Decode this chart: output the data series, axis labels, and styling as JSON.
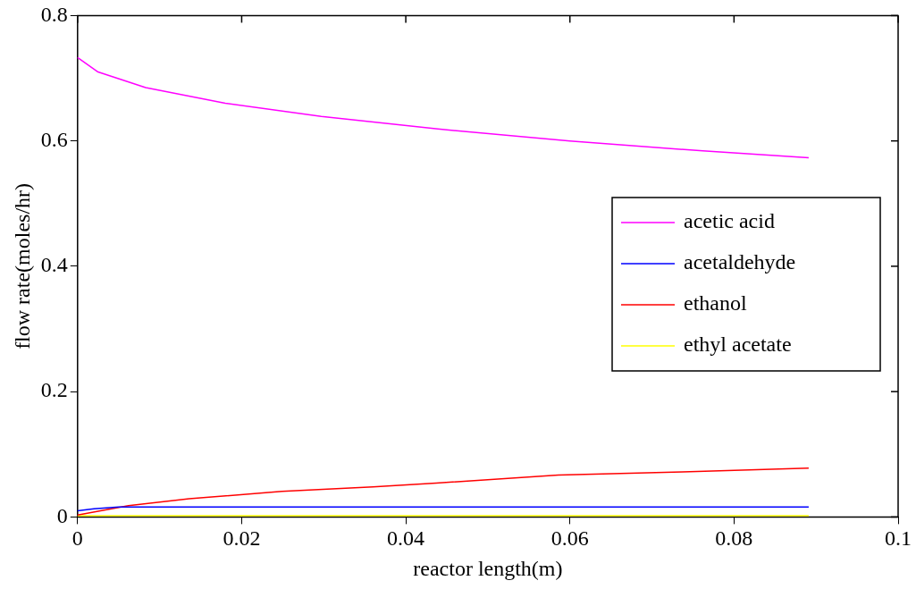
{
  "chart_data": {
    "type": "line",
    "xlabel": "reactor length(m)",
    "ylabel": "flow rate(moles/hr)",
    "xlim": [
      0,
      0.1
    ],
    "xticks": [
      0,
      0.02,
      0.04,
      0.06,
      0.08,
      0.1
    ],
    "ylim": [
      0,
      0.8
    ],
    "yticks": [
      0,
      0.2,
      0.4,
      0.6,
      0.8
    ],
    "grid": false,
    "legend": "right",
    "marker": "none",
    "line_style": "solid",
    "series": [
      {
        "name": "acetic acid",
        "color": "#ff00ff",
        "x": [
          0,
          0.0025,
          0.0083,
          0.018,
          0.0297,
          0.0439,
          0.06,
          0.0762,
          0.0891
        ],
        "values": [
          0.733,
          0.71,
          0.685,
          0.66,
          0.639,
          0.619,
          0.6,
          0.584,
          0.573
        ]
      },
      {
        "name": "acetaldehyde",
        "color": "#0000ff",
        "x": [
          0,
          0.002,
          0.005,
          0.02,
          0.04,
          0.06,
          0.08,
          0.0891
        ],
        "values": [
          0.01,
          0.013,
          0.016,
          0.016,
          0.016,
          0.016,
          0.016,
          0.016
        ]
      },
      {
        "name": "ethanol",
        "color": "#ff0000",
        "x": [
          0,
          0.0062,
          0.0136,
          0.0249,
          0.036,
          0.0437,
          0.0586,
          0.0737,
          0.0891
        ],
        "values": [
          0.003,
          0.018,
          0.029,
          0.041,
          0.048,
          0.054,
          0.067,
          0.072,
          0.078
        ]
      },
      {
        "name": "ethyl acetate",
        "color": "#ffff00",
        "x": [
          0,
          0.02,
          0.04,
          0.06,
          0.08,
          0.0891
        ],
        "values": [
          0.002,
          0.002,
          0.002,
          0.002,
          0.002,
          0.002
        ]
      }
    ]
  }
}
